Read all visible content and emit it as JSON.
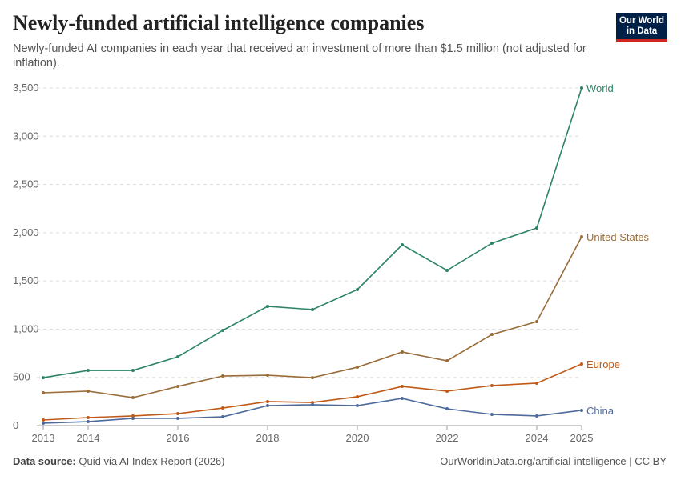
{
  "header": {
    "title": "Newly-funded artificial intelligence companies",
    "subtitle": "Newly-funded AI companies in each year that received an investment of more than $1.5 million (not adjusted for inflation).",
    "logo": "Our World in Data"
  },
  "footer": {
    "source_label": "Data source:",
    "source": "Quid via AI Index Report (2026)",
    "credit": "OurWorldinData.org/artificial-intelligence | CC BY"
  },
  "chart_data": {
    "type": "line",
    "x": [
      2013,
      2014,
      2015,
      2016,
      2017,
      2018,
      2019,
      2020,
      2021,
      2022,
      2023,
      2024,
      2025
    ],
    "x_ticks": [
      "2013",
      "2014",
      "2016",
      "2018",
      "2020",
      "2022",
      "2024",
      "2025"
    ],
    "y_ticks": [
      "0",
      "500",
      "1,000",
      "1,500",
      "2,000",
      "2,500",
      "3,000",
      "3,500"
    ],
    "ylim": [
      0,
      3500
    ],
    "grid": "horizontal dashed",
    "legend": "end-of-line labels",
    "series": [
      {
        "name": "World",
        "color": "#2c8465",
        "values": [
          497,
          572,
          572,
          713,
          987,
          1236,
          1203,
          1410,
          1874,
          1609,
          1891,
          2049,
          3500
        ]
      },
      {
        "name": "United States",
        "color": "#996d39",
        "values": [
          340,
          357,
          290,
          406,
          514,
          522,
          497,
          605,
          763,
          672,
          945,
          1078,
          1957
        ]
      },
      {
        "name": "Europe",
        "color": "#c05917",
        "values": [
          58,
          83,
          100,
          124,
          182,
          249,
          240,
          299,
          406,
          357,
          415,
          440,
          639
        ]
      },
      {
        "name": "China",
        "color": "#4c6a9c",
        "values": [
          25,
          41,
          75,
          75,
          91,
          207,
          216,
          207,
          282,
          174,
          116,
          100,
          158
        ]
      }
    ]
  }
}
